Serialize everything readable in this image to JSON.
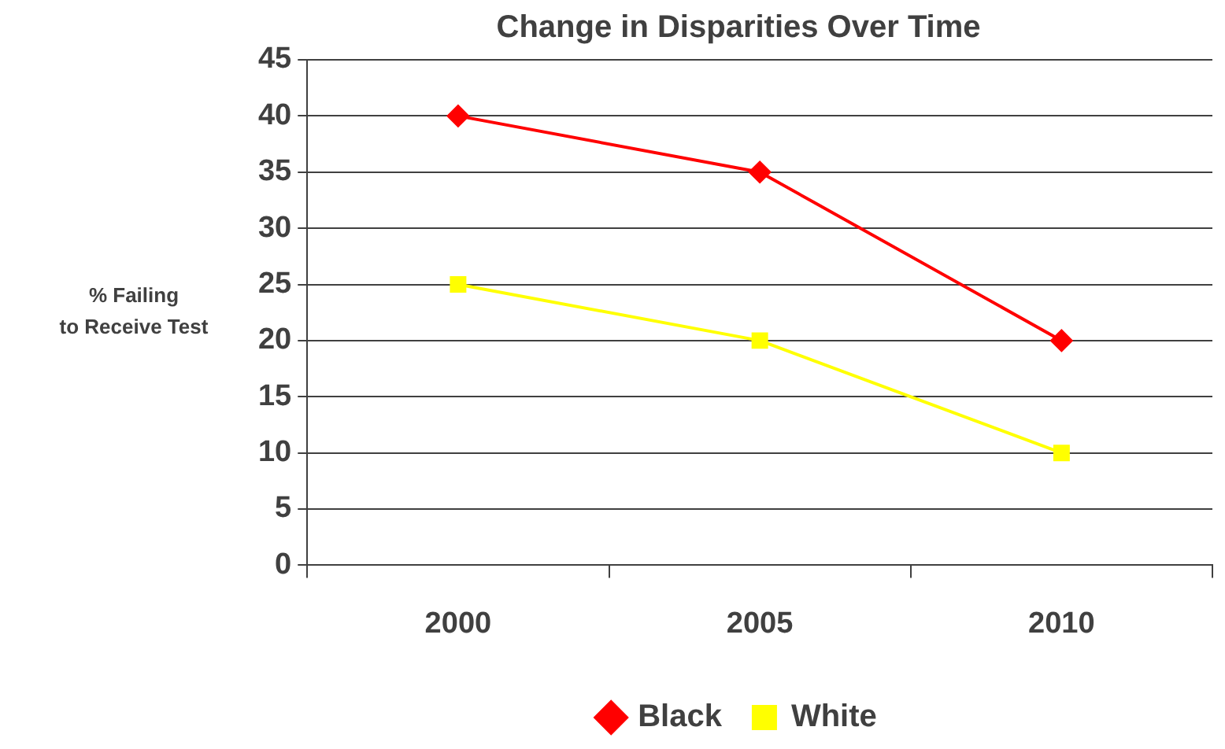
{
  "chart_data": {
    "type": "line",
    "title": "Change in Disparities Over Time",
    "ylabel": "% Failing\nto Receive Test",
    "categories": [
      "2000",
      "2005",
      "2010"
    ],
    "series": [
      {
        "name": "Black",
        "color": "#ff0000",
        "values": [
          40,
          35,
          20
        ],
        "marker": "diamond"
      },
      {
        "name": "White",
        "color": "#ffff00",
        "values": [
          25,
          20,
          10
        ],
        "marker": "square"
      }
    ],
    "ylim": [
      0,
      45
    ],
    "yticks": [
      0,
      5,
      10,
      15,
      20,
      25,
      30,
      35,
      40,
      45
    ],
    "grid": "y",
    "legend": "bottom",
    "line_style": "solid"
  }
}
